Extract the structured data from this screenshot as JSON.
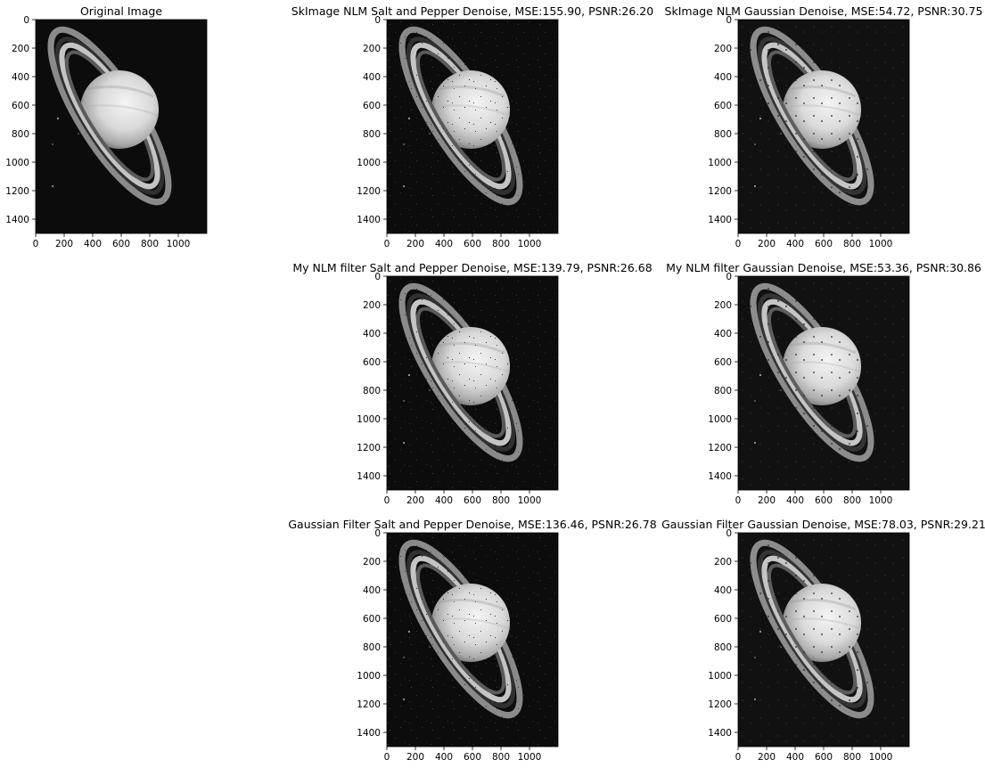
{
  "figure": {
    "background": "#ffffff",
    "panels": [
      {
        "title": "Original Image",
        "noise": "none",
        "x_ticks": [
          "0",
          "200",
          "400",
          "600",
          "800",
          "1000"
        ],
        "y_ticks": [
          "0",
          "200",
          "400",
          "600",
          "800",
          "1000",
          "1200",
          "1400"
        ]
      },
      {
        "title": "SkImage NLM Salt and Pepper Denoise, MSE:155.90, PSNR:26.20",
        "noise": "salt-and-pepper",
        "x_ticks": [
          "0",
          "200",
          "400",
          "600",
          "800",
          "1000"
        ],
        "y_ticks": [
          "0",
          "200",
          "400",
          "600",
          "800",
          "1000",
          "1200",
          "1400"
        ]
      },
      {
        "title": "SkImage NLM Gaussian Denoise, MSE:54.72, PSNR:30.75",
        "noise": "gaussian",
        "x_ticks": [
          "0",
          "200",
          "400",
          "600",
          "800",
          "1000"
        ],
        "y_ticks": [
          "0",
          "200",
          "400",
          "600",
          "800",
          "1000",
          "1200",
          "1400"
        ]
      },
      {
        "title": "My NLM filter Salt and Pepper Denoise, MSE:139.79, PSNR:26.68",
        "noise": "salt-and-pepper",
        "x_ticks": [
          "0",
          "200",
          "400",
          "600",
          "800",
          "1000"
        ],
        "y_ticks": [
          "0",
          "200",
          "400",
          "600",
          "800",
          "1000",
          "1200",
          "1400"
        ]
      },
      {
        "title": "My NLM filter Gaussian Denoise, MSE:53.36, PSNR:30.86",
        "noise": "gaussian",
        "x_ticks": [
          "0",
          "200",
          "400",
          "600",
          "800",
          "1000"
        ],
        "y_ticks": [
          "0",
          "200",
          "400",
          "600",
          "800",
          "1000",
          "1200",
          "1400"
        ]
      },
      {
        "title": "Gaussian Filter Salt and Pepper Denoise, MSE:136.46, PSNR:26.78",
        "noise": "salt-and-pepper",
        "x_ticks": [
          "0",
          "200",
          "400",
          "600",
          "800",
          "1000"
        ],
        "y_ticks": [
          "0",
          "200",
          "400",
          "600",
          "800",
          "1000",
          "1200",
          "1400"
        ]
      },
      {
        "title": "Gaussian Filter Gaussian Denoise, MSE:78.03, PSNR:29.21",
        "noise": "gaussian",
        "x_ticks": [
          "0",
          "200",
          "400",
          "600",
          "800",
          "1000"
        ],
        "y_ticks": [
          "0",
          "200",
          "400",
          "600",
          "800",
          "1000",
          "1200",
          "1400"
        ]
      }
    ]
  }
}
